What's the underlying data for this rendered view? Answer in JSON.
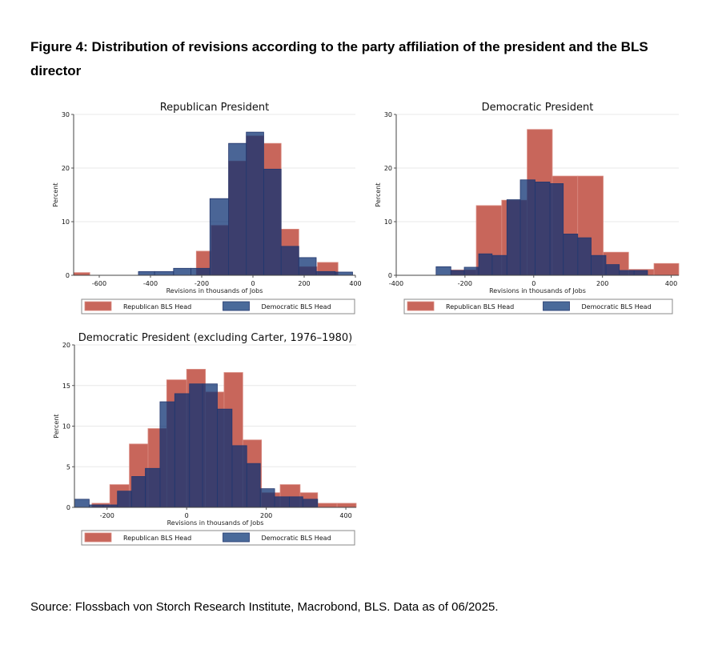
{
  "figure_title": "Figure 4: Distribution of revisions according to the party affiliation of the president and the BLS director",
  "source": "Source: Flossbach von Storch Research Institute, Macrobond, BLS. Data as of 06/2025.",
  "colors": {
    "republican_bls_head": "#c8665b",
    "democratic_bls_head": "rgba(14,50,115,0.75)",
    "grid": "#e8e8e8"
  },
  "chart_data": [
    {
      "type": "bar",
      "title": "Republican President",
      "xlabel": "Revisions in thousands of Jobs",
      "ylabel": "Percent",
      "xlim": [
        -700,
        400
      ],
      "ylim": [
        0,
        30
      ],
      "xticks": [
        -600,
        -400,
        -200,
        0,
        200,
        400
      ],
      "yticks": [
        0,
        10,
        20,
        30
      ],
      "grid": true,
      "legend": "bottom",
      "series": [
        {
          "name": "Republican BLS Head",
          "bins": [
            [
              -705,
              -637,
              0.5
            ],
            [
              -221,
              -163,
              4.5
            ],
            [
              -163,
              -95,
              9.3
            ],
            [
              -95,
              -26,
              21.3
            ],
            [
              -26,
              42,
              26.0
            ],
            [
              42,
              110,
              24.6
            ],
            [
              110,
              179,
              8.6
            ],
            [
              179,
              252,
              1.6
            ],
            [
              252,
              332,
              2.4
            ]
          ]
        },
        {
          "name": "Democratic BLS Head",
          "bins": [
            [
              -447,
              -384,
              0.7
            ],
            [
              -384,
              -310,
              0.7
            ],
            [
              -310,
              -242,
              1.3
            ],
            [
              -242,
              -168,
              1.3
            ],
            [
              -168,
              -95,
              14.3
            ],
            [
              -95,
              -26,
              24.6
            ],
            [
              -26,
              42,
              26.7
            ],
            [
              42,
              110,
              19.8
            ],
            [
              110,
              179,
              5.4
            ],
            [
              179,
              247,
              3.3
            ],
            [
              247,
              321,
              0.7
            ],
            [
              321,
              389,
              0.6
            ]
          ]
        }
      ]
    },
    {
      "type": "bar",
      "title": "Democratic President",
      "xlabel": "Revisions in thousands of Jobs",
      "ylabel": "Percent",
      "xlim": [
        -400,
        422
      ],
      "ylim": [
        0,
        30
      ],
      "xticks": [
        -400,
        -200,
        0,
        200,
        400
      ],
      "yticks": [
        0,
        10,
        20,
        30
      ],
      "grid": true,
      "legend": "bottom",
      "series": [
        {
          "name": "Republican BLS Head",
          "bins": [
            [
              -241,
              -167,
              1.0
            ],
            [
              -167,
              -93,
              13.0
            ],
            [
              -93,
              -19,
              14.0
            ],
            [
              -19,
              54,
              27.2
            ],
            [
              54,
              128,
              18.5
            ],
            [
              128,
              202,
              18.5
            ],
            [
              202,
              276,
              4.3
            ],
            [
              276,
              350,
              1.1
            ],
            [
              350,
              424,
              2.2
            ]
          ]
        },
        {
          "name": "Democratic BLS Head",
          "bins": [
            [
              -284,
              -241,
              1.6
            ],
            [
              -241,
              -202,
              0.9
            ],
            [
              -202,
              -160,
              1.5
            ],
            [
              -160,
              -121,
              4.0
            ],
            [
              -121,
              -78,
              3.7
            ],
            [
              -78,
              -39,
              14.1
            ],
            [
              -39,
              4,
              17.8
            ],
            [
              4,
              47,
              17.4
            ],
            [
              47,
              86,
              17.1
            ],
            [
              86,
              128,
              7.7
            ],
            [
              128,
              167,
              7.0
            ],
            [
              167,
              210,
              3.7
            ],
            [
              210,
              249,
              2.0
            ],
            [
              249,
              292,
              0.9
            ],
            [
              292,
              331,
              0.9
            ]
          ]
        }
      ]
    },
    {
      "type": "bar",
      "title": "Democratic President (excluding Carter, 1976–1980)",
      "xlabel": "Revisions in thousands of Jobs",
      "ylabel": "Percent",
      "xlim": [
        -282,
        426
      ],
      "ylim": [
        0,
        20
      ],
      "xticks": [
        -200,
        0,
        200,
        400
      ],
      "yticks": [
        0,
        5,
        10,
        15,
        20
      ],
      "grid": true,
      "legend": "bottom",
      "series": [
        {
          "name": "Republican BLS Head",
          "bins": [
            [
              -238,
              -193,
              0.5
            ],
            [
              -193,
              -144,
              2.8
            ],
            [
              -144,
              -97,
              7.8
            ],
            [
              -97,
              -50,
              9.7
            ],
            [
              -50,
              0,
              15.7
            ],
            [
              0,
              47,
              17.0
            ],
            [
              47,
              94,
              14.2
            ],
            [
              94,
              141,
              16.6
            ],
            [
              141,
              188,
              8.3
            ],
            [
              188,
              235,
              1.8
            ],
            [
              235,
              285,
              2.8
            ],
            [
              285,
              329,
              1.8
            ],
            [
              329,
              378,
              0.5
            ],
            [
              378,
              426,
              0.5
            ]
          ]
        },
        {
          "name": "Democratic BLS Head",
          "bins": [
            [
              -282,
              -245,
              1.0
            ],
            [
              -245,
              -210,
              0.3
            ],
            [
              -210,
              -174,
              0.3
            ],
            [
              -174,
              -138,
              2.0
            ],
            [
              -138,
              -104,
              3.8
            ],
            [
              -104,
              -67,
              4.8
            ],
            [
              -67,
              -30,
              13.0
            ],
            [
              -30,
              7,
              14.0
            ],
            [
              7,
              40,
              15.2
            ],
            [
              40,
              77,
              15.2
            ],
            [
              77,
              114,
              12.1
            ],
            [
              114,
              151,
              7.6
            ],
            [
              151,
              185,
              5.4
            ],
            [
              185,
              221,
              2.3
            ],
            [
              221,
              258,
              1.3
            ],
            [
              258,
              292,
              1.3
            ],
            [
              292,
              329,
              1.0
            ]
          ]
        }
      ]
    }
  ]
}
